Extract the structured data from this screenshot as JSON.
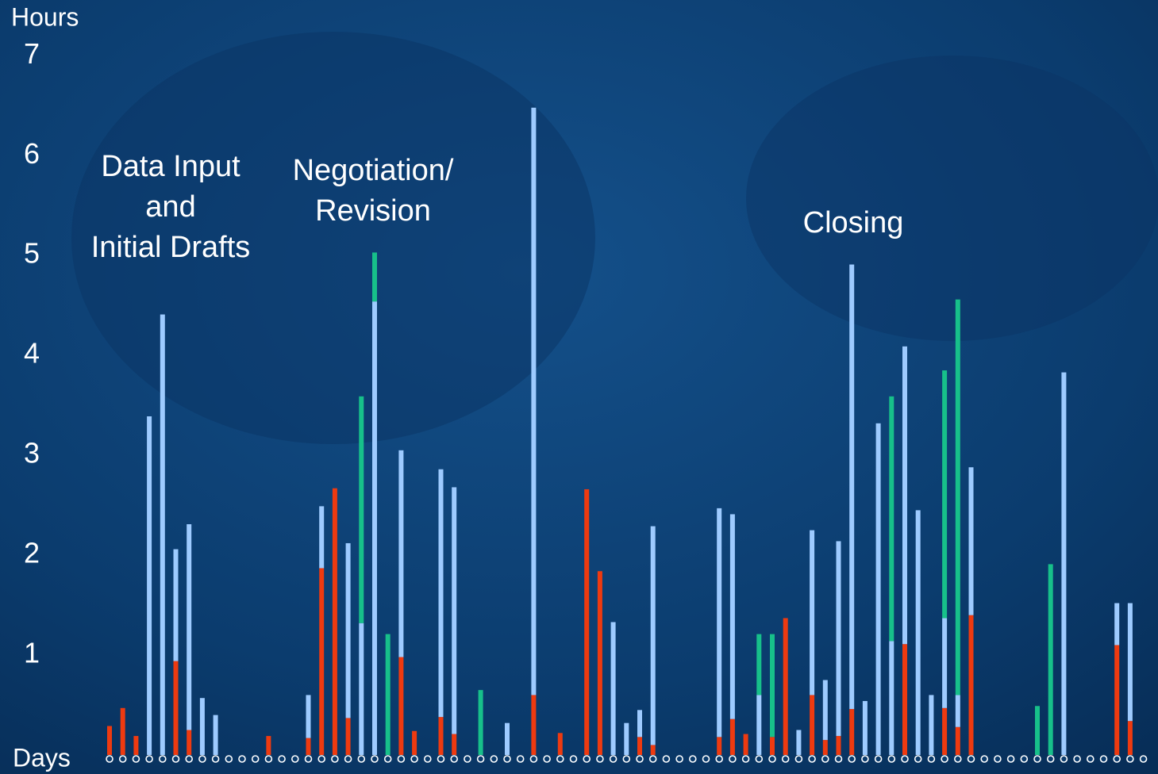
{
  "chart_data": {
    "type": "stacked-bar",
    "y_label": "Hours",
    "x_label": "Days",
    "annotations": [
      {
        "lines": [
          "Data Input",
          "and",
          "Initial Drafts"
        ]
      },
      {
        "lines": [
          "Negotiation/",
          "Revision"
        ]
      },
      {
        "lines": [
          "Closing"
        ]
      }
    ],
    "categories": [
      null,
      null,
      null,
      null,
      null,
      null,
      null,
      null,
      null,
      null,
      null,
      null,
      null,
      null,
      null,
      null,
      null,
      null,
      null,
      null,
      null,
      null,
      null,
      null,
      null,
      null,
      null,
      null,
      null,
      null,
      null,
      null,
      null,
      null,
      null,
      null,
      null,
      null,
      null,
      null,
      null,
      null,
      null,
      null,
      null,
      null,
      null,
      null,
      null,
      null,
      null,
      null,
      null,
      null,
      null,
      null,
      null,
      null,
      null,
      null,
      null,
      null,
      null,
      null,
      null,
      null,
      null,
      null,
      null,
      null,
      null,
      null,
      null,
      null,
      null,
      null,
      null,
      null,
      null
    ],
    "series": [
      {
        "color": "#ee3a10",
        "values": [
          0.29,
          0.47,
          0.19,
          null,
          null,
          0.94,
          0.25,
          null,
          null,
          null,
          null,
          null,
          0.19,
          null,
          null,
          0.17,
          1.87,
          2.67,
          0.37,
          null,
          null,
          null,
          0.98,
          0.24,
          null,
          0.38,
          0.21,
          null,
          null,
          null,
          null,
          null,
          0.6,
          null,
          0.22,
          null,
          2.66,
          1.84,
          null,
          null,
          0.18,
          0.1,
          null,
          null,
          null,
          null,
          0.18,
          0.36,
          0.21,
          null,
          0.18,
          1.37,
          null,
          0.6,
          0.15,
          0.19,
          0.46,
          null,
          null,
          null,
          1.11,
          null,
          null,
          0.47,
          0.28,
          1.4,
          null,
          null,
          null,
          null,
          null,
          null,
          null,
          null,
          null,
          null,
          1.1,
          0.34,
          null
        ]
      },
      {
        "color": "#9ecbff",
        "values": [
          null,
          null,
          null,
          3.39,
          4.41,
          1.12,
          2.06,
          0.57,
          0.4,
          null,
          null,
          null,
          null,
          null,
          null,
          0.43,
          0.62,
          null,
          1.75,
          1.32,
          4.54,
          null,
          2.07,
          null,
          null,
          2.48,
          2.47,
          null,
          null,
          null,
          0.32,
          null,
          5.88,
          null,
          null,
          null,
          null,
          null,
          1.33,
          0.32,
          0.27,
          2.19,
          null,
          null,
          null,
          null,
          2.29,
          2.05,
          null,
          0.6,
          null,
          null,
          0.25,
          1.65,
          0.6,
          1.95,
          4.45,
          0.54,
          3.32,
          1.14,
          2.98,
          2.45,
          0.6,
          0.9,
          0.32,
          1.48,
          null,
          null,
          null,
          null,
          null,
          null,
          3.83,
          null,
          null,
          null,
          0.42,
          1.18,
          null
        ]
      },
      {
        "color": "#17c08a",
        "values": [
          null,
          null,
          null,
          null,
          null,
          null,
          null,
          null,
          null,
          null,
          null,
          null,
          null,
          null,
          null,
          null,
          null,
          null,
          null,
          2.27,
          0.49,
          1.21,
          null,
          null,
          null,
          null,
          null,
          null,
          0.65,
          null,
          null,
          null,
          null,
          null,
          null,
          null,
          null,
          null,
          null,
          null,
          null,
          null,
          null,
          null,
          null,
          null,
          null,
          null,
          null,
          0.61,
          1.03,
          null,
          null,
          null,
          null,
          null,
          null,
          null,
          null,
          2.45,
          null,
          null,
          null,
          2.48,
          3.96,
          null,
          null,
          null,
          null,
          null,
          0.49,
          1.91,
          null,
          null,
          null,
          null,
          null,
          null,
          null
        ]
      }
    ],
    "ylim": [
      0,
      7.55
    ],
    "yticks": [
      1,
      2,
      3,
      4,
      5,
      6,
      7
    ],
    "grid": false
  }
}
